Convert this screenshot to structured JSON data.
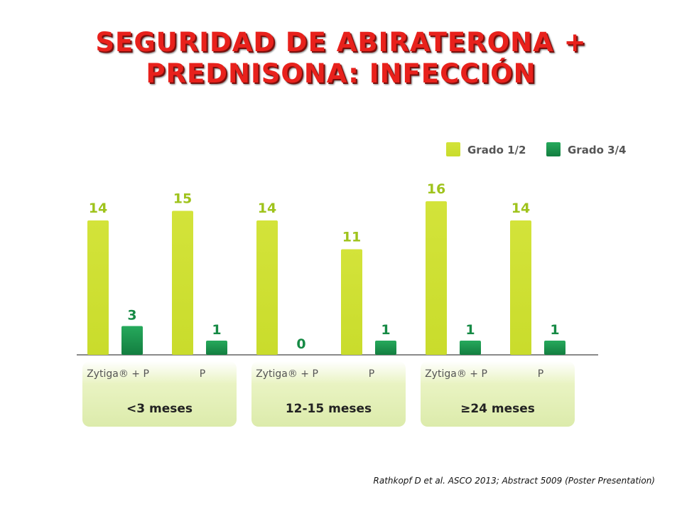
{
  "title": {
    "line1": "SEGURIDAD DE ABIRATERONA +",
    "line2": "PREDNISONA: INFECCIÓN"
  },
  "citation": "Rathkopf D et al. ASCO 2013; Abstract 5009 (Poster Presentation)",
  "colors": {
    "title": "#e8211c",
    "grade12": "#c9dc2c",
    "grade34": "#1e9a55",
    "value_label_12": "#9fc31c",
    "value_label_34": "#168a45",
    "group_panel": "#e9f3c2",
    "axis_label": "#555555"
  },
  "chart_data": {
    "type": "bar",
    "legend_position": "top-right",
    "categories": [
      "Zytiga® + P",
      "P",
      "Zytiga® + P",
      "P",
      "Zytiga® + P",
      "P"
    ],
    "groups": [
      {
        "label": "<3 meses",
        "categories": [
          0,
          1
        ]
      },
      {
        "label": "12-15 meses",
        "categories": [
          2,
          3
        ]
      },
      {
        "label": "≥24 meses",
        "categories": [
          4,
          5
        ]
      }
    ],
    "series": [
      {
        "name": "Grado 1/2",
        "values": [
          14,
          15,
          14,
          11,
          16,
          14
        ]
      },
      {
        "name": "Grado 3/4",
        "values": [
          3,
          1,
          0,
          1,
          1,
          1
        ]
      }
    ],
    "ylim": [
      0,
      16
    ],
    "grid": false
  }
}
